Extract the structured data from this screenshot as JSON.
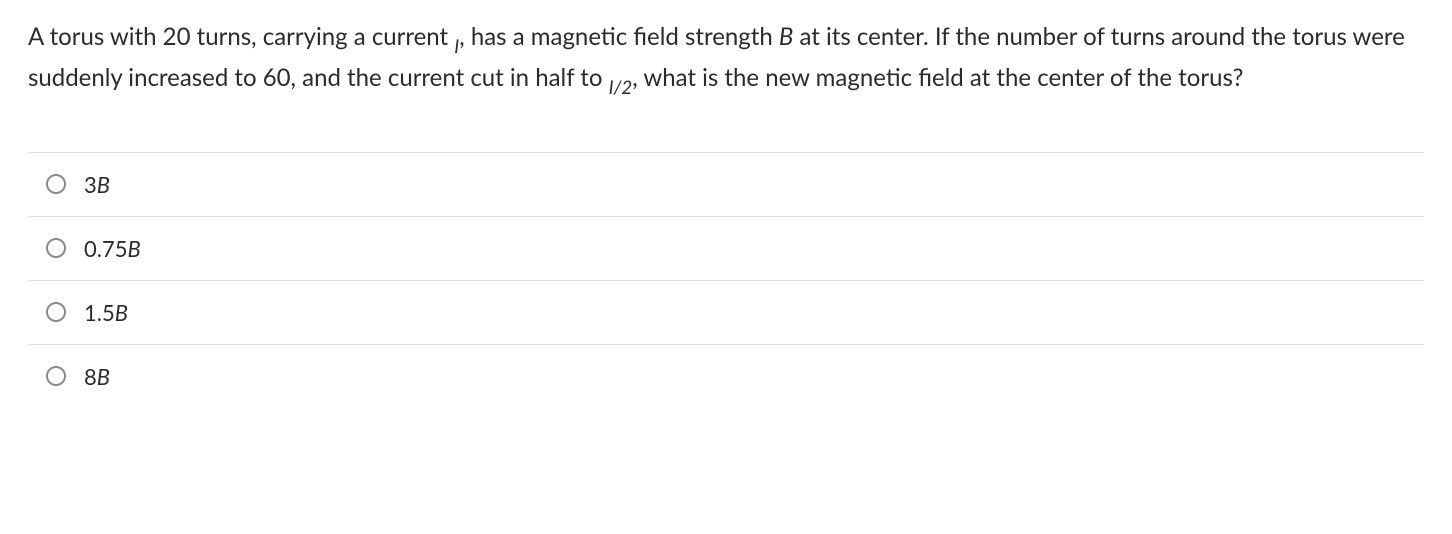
{
  "question": {
    "part1": "A torus with 20 turns, carrying a current ",
    "sub1": "I",
    "part2": ", has a magnetic field strength ",
    "bvar1": "B",
    "part3": " at its center. If the number of turns around the torus were suddenly increased to 60, and the current cut in half to ",
    "sub2": "I/2",
    "part4": ", what is the new magnetic field at the center of the torus?"
  },
  "options": [
    {
      "prefix": "3",
      "var": "B"
    },
    {
      "prefix": "0.75",
      "var": "B"
    },
    {
      "prefix": "1.5",
      "var": "B"
    },
    {
      "prefix": "8",
      "var": "B"
    }
  ],
  "colors": {
    "text": "#2b2b2b",
    "border": "#dddddd",
    "radio_border": "#8c8c8c",
    "background": "#ffffff"
  },
  "typography": {
    "question_fontsize": 24,
    "option_fontsize": 22,
    "line_height": 1.55
  }
}
